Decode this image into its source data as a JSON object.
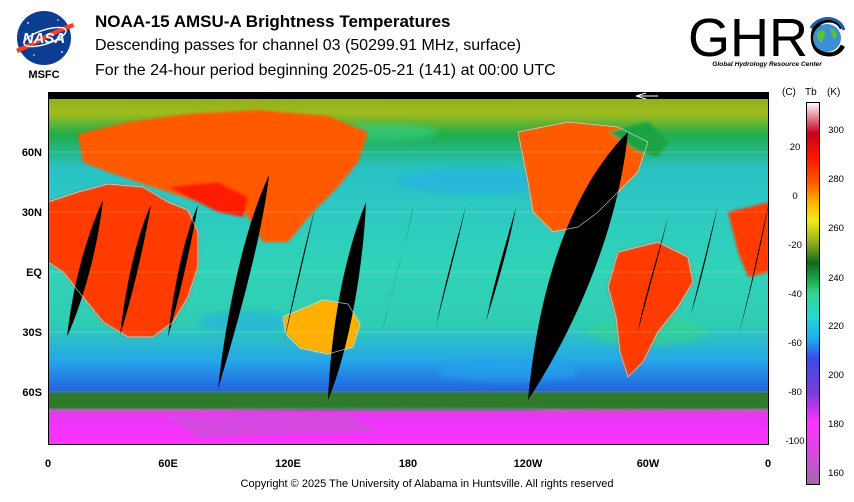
{
  "header": {
    "title": "NOAA-15 AMSU-A Brightness Temperatures",
    "subtitle": "Descending passes for channel 03 (50299.91 MHz, surface)",
    "period": "For the 24-hour period beginning 2025-05-21 (141) at 00:00 UTC"
  },
  "logos": {
    "nasa_text": "NASA",
    "msfc": "MSFC",
    "ghrc_text": "GHRC",
    "ghrc_subtitle": "Global Hydrology Resource Center"
  },
  "map": {
    "lat_labels": [
      "60N",
      "30N",
      "EQ",
      "30S",
      "60S"
    ],
    "lon_labels": [
      "0",
      "60E",
      "120E",
      "180",
      "120W",
      "60W",
      "0"
    ]
  },
  "colorbar": {
    "header_c": "(C)",
    "header_tb": "Tb",
    "header_k": "(K)",
    "celsius_ticks": [
      "20",
      "0",
      "-20",
      "-40",
      "-60",
      "-80",
      "-100"
    ],
    "kelvin_ticks": [
      "300",
      "280",
      "260",
      "240",
      "220",
      "200",
      "180",
      "160"
    ],
    "range_k": [
      155,
      305
    ],
    "colors": [
      "#a36aa8",
      "#d64ae0",
      "#ff33ff",
      "#7a3dd9",
      "#3a4ce6",
      "#1eaaf0",
      "#27d8cf",
      "#38d48e",
      "#1aa245",
      "#0d6b1d",
      "#8ca81f",
      "#f0ec18",
      "#ffb000",
      "#ff5a00",
      "#ff1a00",
      "#c80020",
      "#ffffff"
    ]
  },
  "footer": {
    "copyright": "Copyright © 2025 The University of Alabama in Huntsville.  All rights reserved"
  }
}
